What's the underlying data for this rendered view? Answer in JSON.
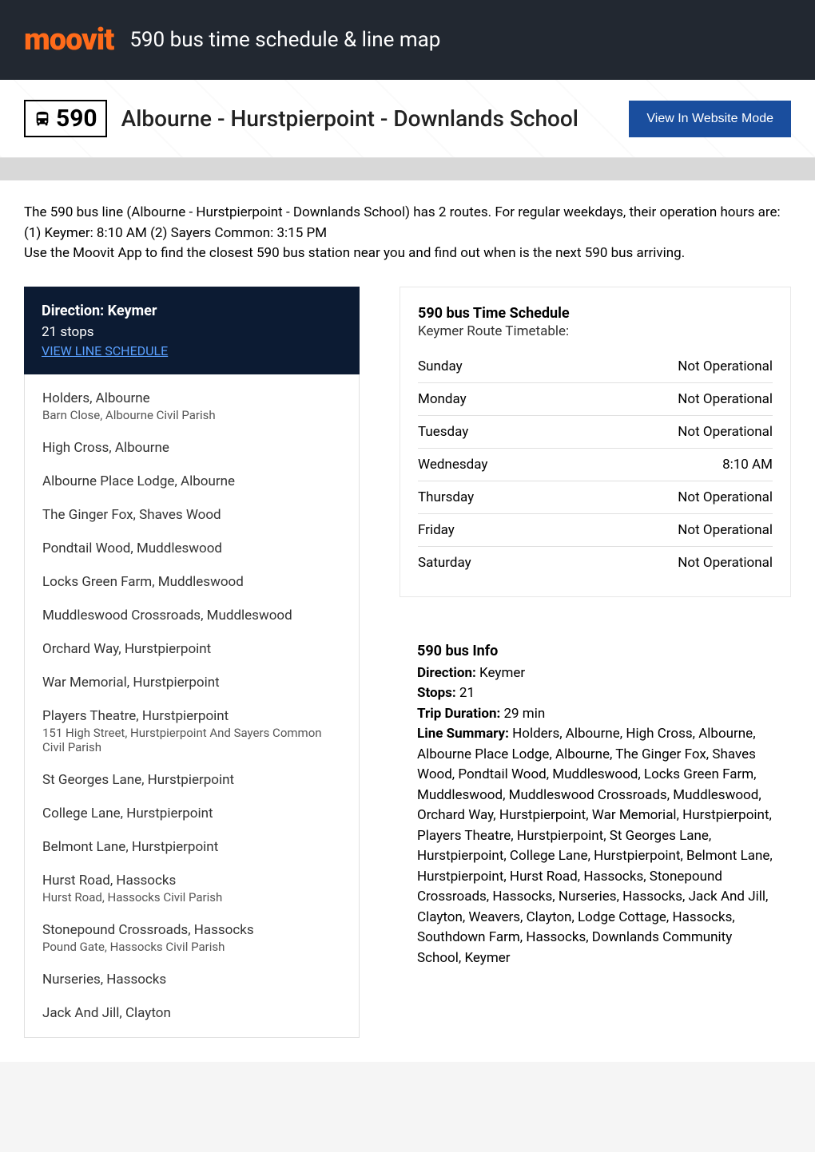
{
  "header": {
    "logo": "moovit",
    "title": "590 bus time schedule & line map"
  },
  "titleBar": {
    "routeNumber": "590",
    "routeName": "Albourne - Hurstpierpoint - Downlands School",
    "viewModeButton": "View In Website Mode"
  },
  "description": {
    "line1": "The 590 bus line (Albourne - Hurstpierpoint - Downlands School) has 2 routes. For regular weekdays, their operation hours are:",
    "line2": "(1) Keymer: 8:10 AM (2) Sayers Common: 3:15 PM",
    "line3": "Use the Moovit App to find the closest 590 bus station near you and find out when is the next 590 bus arriving."
  },
  "direction": {
    "title": "Direction: Keymer",
    "stopsCount": "21 stops",
    "viewSchedule": "VIEW LINE SCHEDULE"
  },
  "stops": [
    {
      "name": "Holders, Albourne",
      "sub": "Barn Close, Albourne Civil Parish"
    },
    {
      "name": "High Cross, Albourne",
      "sub": ""
    },
    {
      "name": "Albourne Place Lodge, Albourne",
      "sub": ""
    },
    {
      "name": "The Ginger Fox, Shaves Wood",
      "sub": ""
    },
    {
      "name": "Pondtail Wood, Muddleswood",
      "sub": ""
    },
    {
      "name": "Locks Green Farm, Muddleswood",
      "sub": ""
    },
    {
      "name": "Muddleswood Crossroads, Muddleswood",
      "sub": ""
    },
    {
      "name": "Orchard Way, Hurstpierpoint",
      "sub": ""
    },
    {
      "name": "War Memorial, Hurstpierpoint",
      "sub": ""
    },
    {
      "name": "Players Theatre, Hurstpierpoint",
      "sub": "151 High Street, Hurstpierpoint And Sayers Common Civil Parish"
    },
    {
      "name": "St Georges Lane, Hurstpierpoint",
      "sub": ""
    },
    {
      "name": "College Lane, Hurstpierpoint",
      "sub": ""
    },
    {
      "name": "Belmont Lane, Hurstpierpoint",
      "sub": ""
    },
    {
      "name": "Hurst Road, Hassocks",
      "sub": "Hurst Road, Hassocks Civil Parish"
    },
    {
      "name": "Stonepound Crossroads, Hassocks",
      "sub": "Pound Gate, Hassocks Civil Parish"
    },
    {
      "name": "Nurseries, Hassocks",
      "sub": ""
    },
    {
      "name": "Jack And Jill, Clayton",
      "sub": ""
    }
  ],
  "schedule": {
    "title": "590 bus Time Schedule",
    "subtitle": "Keymer Route Timetable:",
    "rows": [
      {
        "day": "Sunday",
        "value": "Not Operational"
      },
      {
        "day": "Monday",
        "value": "Not Operational"
      },
      {
        "day": "Tuesday",
        "value": "Not Operational"
      },
      {
        "day": "Wednesday",
        "value": "8:10 AM"
      },
      {
        "day": "Thursday",
        "value": "Not Operational"
      },
      {
        "day": "Friday",
        "value": "Not Operational"
      },
      {
        "day": "Saturday",
        "value": "Not Operational"
      }
    ]
  },
  "info": {
    "title": "590 bus Info",
    "directionLabel": "Direction:",
    "directionValue": " Keymer",
    "stopsLabel": "Stops:",
    "stopsValue": " 21",
    "durationLabel": "Trip Duration:",
    "durationValue": " 29 min",
    "summaryLabel": "Line Summary:",
    "summaryValue": " Holders, Albourne, High Cross, Albourne, Albourne Place Lodge, Albourne, The Ginger Fox, Shaves Wood, Pondtail Wood, Muddleswood, Locks Green Farm, Muddleswood, Muddleswood Crossroads, Muddleswood, Orchard Way, Hurstpierpoint, War Memorial, Hurstpierpoint, Players Theatre, Hurstpierpoint, St Georges Lane, Hurstpierpoint, College Lane, Hurstpierpoint, Belmont Lane, Hurstpierpoint, Hurst Road, Hassocks, Stonepound Crossroads, Hassocks, Nurseries, Hassocks, Jack And Jill, Clayton, Weavers, Clayton, Lodge Cottage, Hassocks, Southdown Farm, Hassocks, Downlands Community School, Keymer"
  },
  "colors": {
    "headerBg": "#222831",
    "logoColor": "#ff6b1a",
    "btnBg": "#1a4e9e",
    "directionBg": "#0c1b33",
    "linkColor": "#5aa0ff"
  }
}
